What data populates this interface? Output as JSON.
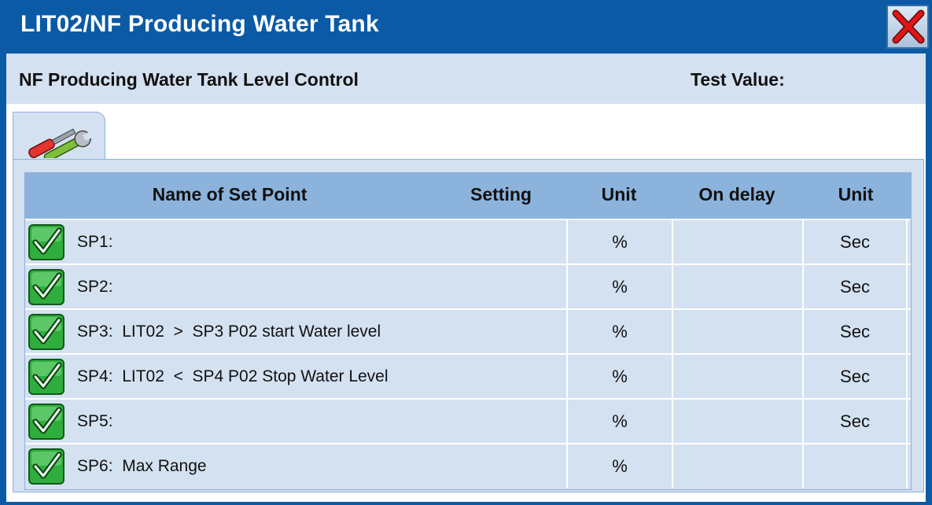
{
  "window": {
    "title": "LIT02/NF Producing Water Tank",
    "close_icon": "close-x-icon",
    "colors": {
      "titlebar": "#0a5aa6",
      "panel": "#d4e1f1",
      "grid_header": "#8cb3dc"
    }
  },
  "header": {
    "title": "NF Producing Water Tank Level Control",
    "test_value_label": "Test Value:"
  },
  "tab": {
    "icon": "tools-icon"
  },
  "table": {
    "columns": [
      "Name of Set Point",
      "Setting",
      "Unit",
      "On delay",
      "Unit"
    ],
    "rows": [
      {
        "label": "SP1:",
        "unit": "%",
        "delay_unit": "Sec",
        "enabled_icon": "checkmark-icon"
      },
      {
        "label": "SP2:",
        "unit": "%",
        "delay_unit": "Sec",
        "enabled_icon": "checkmark-icon"
      },
      {
        "label": "SP3:  LIT02  >  SP3 P02 start Water level",
        "unit": "%",
        "delay_unit": "Sec",
        "enabled_icon": "checkmark-icon"
      },
      {
        "label": "SP4:  LIT02  <  SP4 P02 Stop Water Level",
        "unit": "%",
        "delay_unit": "Sec",
        "enabled_icon": "checkmark-icon"
      },
      {
        "label": "SP5:",
        "unit": "%",
        "delay_unit": "Sec",
        "enabled_icon": "checkmark-icon"
      },
      {
        "label": "SP6:  Max Range",
        "unit": "%",
        "delay_unit": "",
        "enabled_icon": "checkmark-icon"
      }
    ]
  }
}
